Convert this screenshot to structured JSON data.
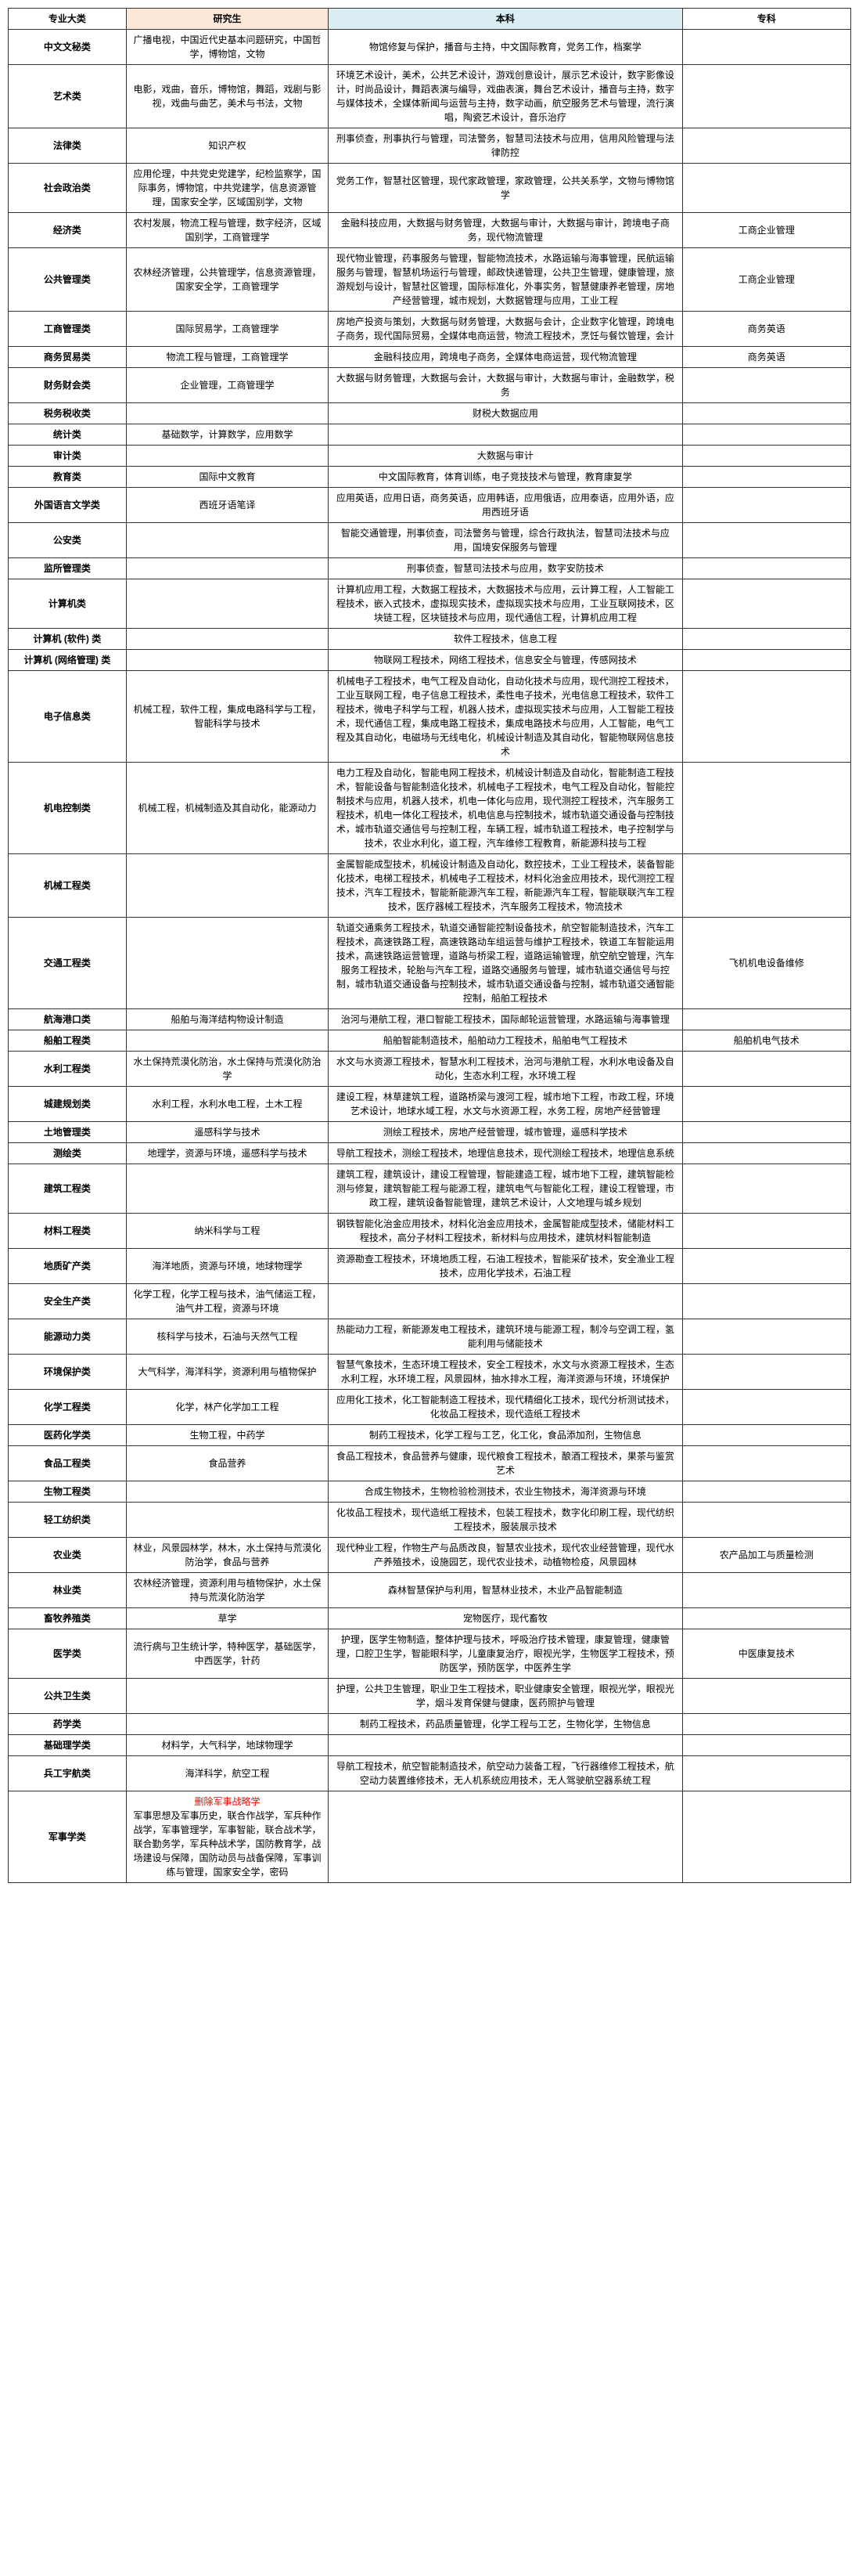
{
  "headers": {
    "category": "专业大类",
    "graduate": "研究生",
    "bachelor": "本科",
    "associate": "专科"
  },
  "header_bg": {
    "graduate": "#fde9d9",
    "bachelor": "#daeef3"
  },
  "rows": [
    {
      "cat": "中文文秘类",
      "grad": "广播电视，中国近代史基本问题研究，中国哲学，博物馆，文物",
      "bach": "物馆修复与保护，播音与主持，中文国际教育，党务工作，档案学",
      "assoc": ""
    },
    {
      "cat": "艺术类",
      "grad": "电影，戏曲，音乐，博物馆，舞蹈，戏剧与影视，戏曲与曲艺，美术与书法，文物",
      "bach": "环境艺术设计，美术，公共艺术设计，游戏创意设计，展示艺术设计，数字影像设计，时尚品设计，舞蹈表演与编导，戏曲表演，舞台艺术设计，播音与主持，数字与媒体技术，全媒体新闻与运营与主持，数字动画，航空服务艺术与管理，流行演唱，陶瓷艺术设计，音乐治疗",
      "assoc": ""
    },
    {
      "cat": "法律类",
      "grad": "知识产权",
      "bach": "刑事侦查，刑事执行与管理，司法警务，智慧司法技术与应用，信用风险管理与法律防控",
      "assoc": ""
    },
    {
      "cat": "社会政治类",
      "grad": "应用伦理，中共党史党建学，纪检监察学，国际事务，博物馆，中共党建学，信息资源管理，国家安全学，区域国别学，文物",
      "bach": "党务工作，智慧社区管理，现代家政管理，家政管理，公共关系学，文物与博物馆学",
      "assoc": ""
    },
    {
      "cat": "经济类",
      "grad": "农村发展，物流工程与管理，数字经济，区域国别学，工商管理学",
      "bach": "金融科技应用，大数据与财务管理，大数据与审计，大数据与审计，跨境电子商务，现代物流管理",
      "assoc": "工商企业管理"
    },
    {
      "cat": "公共管理类",
      "grad": "农林经济管理，公共管理学，信息资源管理，国家安全学，工商管理学",
      "bach": "现代物业管理，药事服务与管理，智能物流技术，水路运输与海事管理，民航运输服务与管理，智慧机场运行与管理，邮政快递管理，公共卫生管理，健康管理，旅游规划与设计，智慧社区管理，国际标准化，外事实务，智慧健康养老管理，房地产经营管理，城市规划，大数据管理与应用，工业工程",
      "assoc": "工商企业管理"
    },
    {
      "cat": "工商管理类",
      "grad": "国际贸易学，工商管理学",
      "bach": "房地产投资与策划，大数据与财务管理，大数据与会计，企业数字化管理，跨境电子商务，现代国际贸易，全媒体电商运营，物流工程技术，烹饪与餐饮管理，会计",
      "assoc": "商务英语"
    },
    {
      "cat": "商务贸易类",
      "grad": "物流工程与管理，工商管理学",
      "bach": "金融科技应用，跨境电子商务，全媒体电商运营，现代物流管理",
      "assoc": "商务英语"
    },
    {
      "cat": "财务财会类",
      "grad": "企业管理，工商管理学",
      "bach": "大数据与财务管理，大数据与会计，大数据与审计，大数据与审计，金融数学，税务",
      "assoc": ""
    },
    {
      "cat": "税务税收类",
      "grad": "",
      "bach": "财税大数据应用",
      "assoc": ""
    },
    {
      "cat": "统计类",
      "grad": "基础数学，计算数学，应用数学",
      "bach": "",
      "assoc": ""
    },
    {
      "cat": "审计类",
      "grad": "",
      "bach": "大数据与审计",
      "assoc": ""
    },
    {
      "cat": "教育类",
      "grad": "国际中文教育",
      "bach": "中文国际教育，体育训练，电子竞技技术与管理，教育康复学",
      "assoc": ""
    },
    {
      "cat": "外国语言文学类",
      "grad": "西班牙语笔译",
      "bach": "应用英语，应用日语，商务英语，应用韩语，应用俄语，应用泰语，应用外语，应用西班牙语",
      "assoc": ""
    },
    {
      "cat": "公安类",
      "grad": "",
      "bach": "智能交通管理，刑事侦查，司法警务与管理，综合行政执法，智慧司法技术与应用，国境安保服务与管理",
      "assoc": ""
    },
    {
      "cat": "监所管理类",
      "grad": "",
      "bach": "刑事侦查，智慧司法技术与应用，数字安防技术",
      "assoc": ""
    },
    {
      "cat": "计算机类",
      "grad": "",
      "bach": "计算机应用工程，大数据工程技术，大数据技术与应用，云计算工程，人工智能工程技术，嵌入式技术，虚拟现实技术，虚拟现实技术与应用，工业互联网技术，区块链工程，区块链技术与应用，现代通信工程，计算机应用工程",
      "assoc": ""
    },
    {
      "cat": "计算机 (软件) 类",
      "grad": "",
      "bach": "软件工程技术，信息工程",
      "assoc": ""
    },
    {
      "cat": "计算机 (网络管理) 类",
      "grad": "",
      "bach": "物联网工程技术，网络工程技术，信息安全与管理，传感网技术",
      "assoc": ""
    },
    {
      "cat": "电子信息类",
      "grad": "机械工程，软件工程，集成电路科学与工程，智能科学与技术",
      "bach": "机械电子工程技术，电气工程及自动化，自动化技术与应用，现代测控工程技术，工业互联网工程，电子信息工程技术，柔性电子技术，光电信息工程技术，软件工程技术，微电子科学与工程，机器人技术，虚拟现实技术与应用，人工智能工程技术，现代通信工程，集成电路工程技术，集成电路技术与应用，人工智能，电气工程及其自动化，电磁场与无线电化，机械设计制造及其自动化，智能物联网信息技术",
      "assoc": ""
    },
    {
      "cat": "机电控制类",
      "grad": "机械工程，机械制造及其自动化，能源动力",
      "bach": "电力工程及自动化，智能电网工程技术，机械设计制造及自动化，智能制造工程技术，智能设备与智能制造化技术，机械电子工程技术，电气工程及自动化，智能控制技术与应用，机器人技术，机电一体化与应用，现代测控工程技术，汽车服务工程技术，机电一体化工程技术，机电信息与控制技术，城市轨道交通设备与控制技术，城市轨道交通信号与控制工程，车辆工程，城市轨道工程技术，电子控制学与技术，农业水利化，道工程，汽车维修工程教育，新能源科技与工程",
      "assoc": ""
    },
    {
      "cat": "机械工程类",
      "grad": "",
      "bach": "金属智能成型技术，机械设计制造及自动化，数控技术，工业工程技术，装备智能化技术，电梯工程技术，机械电子工程技术，材料化治金应用技术，现代测控工程技术，汽车工程技术，智能新能源汽车工程，新能源汽车工程，智能联联汽车工程技术，医疗器械工程技术，汽车服务工程技术，物流技术",
      "assoc": ""
    },
    {
      "cat": "交通工程类",
      "grad": "",
      "bach": "轨道交通乘务工程技术，轨道交通智能控制设备技术，航空智能制造技术，汽车工程技术，高速铁路工程，高速铁路动车组运营与维护工程技术，铁道工车智能运用技术，高速铁路运营管理，道路与桥梁工程，道路运输管理，航空航空管理，汽车服务工程技术，轮胎与汽车工程，道路交通服务与管理，城市轨道交通信号与控制，城市轨道交通设备与控制技术，城市轨道交通设备与控制，城市轨道交通智能控制，船舶工程技术",
      "assoc": "飞机机电设备维修"
    },
    {
      "cat": "航海港口类",
      "grad": "船舶与海洋结构物设计制造",
      "bach": "治河与港航工程，港口智能工程技术，国际邮轮运营管理，水路运输与海事管理",
      "assoc": ""
    },
    {
      "cat": "船舶工程类",
      "grad": "",
      "bach": "船舶智能制造技术，船舶动力工程技术，船舶电气工程技术",
      "assoc": "船舶机电气技术"
    },
    {
      "cat": "水利工程类",
      "grad": "水土保持荒漠化防治，水土保持与荒漠化防治学",
      "bach": "水文与水资源工程技术，智慧水利工程技术，治河与港航工程，水利水电设备及自动化，生态水利工程，水环境工程",
      "assoc": ""
    },
    {
      "cat": "城建规划类",
      "grad": "水利工程，水利水电工程，土木工程",
      "bach": "建设工程，林草建筑工程，道路桥梁与渡河工程，城市地下工程，市政工程，环境艺术设计，地球水域工程，水文与水资源工程，水务工程，房地产经营管理",
      "assoc": ""
    },
    {
      "cat": "土地管理类",
      "grad": "遥感科学与技术",
      "bach": "测绘工程技术，房地产经营管理，城市管理，遥感科学技术",
      "assoc": ""
    },
    {
      "cat": "测绘类",
      "grad": "地理学，资源与环境，遥感科学与技术",
      "bach": "导航工程技术，测绘工程技术，地理信息技术，现代测绘工程技术，地理信息系统",
      "assoc": ""
    },
    {
      "cat": "建筑工程类",
      "grad": "",
      "bach": "建筑工程，建筑设计，建设工程管理，智能建造工程，城市地下工程，建筑智能检测与修复，建筑智能工程与能源工程，建筑电气与智能化工程，建设工程管理，市政工程，建筑设备智能管理，建筑艺术设计，人文地理与城乡规划",
      "assoc": ""
    },
    {
      "cat": "材料工程类",
      "grad": "纳米科学与工程",
      "bach": "钢铁智能化治金应用技术，材料化治金应用技术，金属智能成型技术，储能材料工程技术，高分子材料工程技术，新材料与应用技术，建筑材料智能制造",
      "assoc": ""
    },
    {
      "cat": "地质矿产类",
      "grad": "海洋地质，资源与环境，地球物理学",
      "bach": "资源勘查工程技术，环境地质工程，石油工程技术，智能采矿技术，安全渔业工程技术，应用化学技术，石油工程",
      "assoc": ""
    },
    {
      "cat": "安全生产类",
      "grad": "化学工程，化学工程与技术，油气储运工程，油气井工程，资源与环境",
      "bach": "",
      "assoc": ""
    },
    {
      "cat": "能源动力类",
      "grad": "核科学与技术，石油与天然气工程",
      "bach": "热能动力工程，新能源发电工程技术，建筑环境与能源工程，制冷与空调工程，氢能利用与储能技术",
      "assoc": ""
    },
    {
      "cat": "环境保护类",
      "grad": "大气科学，海洋科学，资源利用与植物保护",
      "bach": "智慧气象技术，生态环境工程技术，安全工程技术，水文与水资源工程技术，生态水利工程，水环境工程，风景园林，抽水排水工程，海洋资源与环境，环境保护",
      "assoc": ""
    },
    {
      "cat": "化学工程类",
      "grad": "化学，林产化学加工工程",
      "bach": "应用化工技术，化工智能制造工程技术，现代精细化工技术，现代分析测试技术，化妆品工程技术，现代造纸工程技术",
      "assoc": ""
    },
    {
      "cat": "医药化学类",
      "grad": "生物工程，中药学",
      "bach": "制药工程技术，化学工程与工艺，化工化，食品添加剂，生物信息",
      "assoc": ""
    },
    {
      "cat": "食品工程类",
      "grad": "食品营养",
      "bach": "食品工程技术，食品营养与健康，现代粮食工程技术，酿酒工程技术，果茶与鉴赏艺术",
      "assoc": ""
    },
    {
      "cat": "生物工程类",
      "grad": "",
      "bach": "合成生物技术，生物检验检测技术，农业生物技术，海洋资源与环境",
      "assoc": ""
    },
    {
      "cat": "轻工纺织类",
      "grad": "",
      "bach": "化妆品工程技术，现代造纸工程技术，包装工程技术，数字化印刷工程，现代纺织工程技术，服装展示技术",
      "assoc": ""
    },
    {
      "cat": "农业类",
      "grad": "林业，风景园林学，林木，水土保持与荒漠化防治学，食品与营养",
      "bach": "现代种业工程，作物生产与品质改良，智慧农业技术，现代农业经营管理，现代水产养殖技术，设施园艺，现代农业技术，动植物检疫，风景园林",
      "assoc": "农产品加工与质量检测"
    },
    {
      "cat": "林业类",
      "grad": "农林经济管理，资源利用与植物保护，水土保持与荒漠化防治学",
      "bach": "森林智慧保护与利用，智慧林业技术，木业产品智能制造",
      "assoc": ""
    },
    {
      "cat": "畜牧养殖类",
      "grad": "草学",
      "bach": "宠物医疗，现代畜牧",
      "assoc": ""
    },
    {
      "cat": "医学类",
      "grad": "流行病与卫生统计学，特种医学，基础医学，中西医学，针药",
      "bach": "护理，医学生物制造，整体护理与技术，呼吸治疗技术管理，康复管理，健康管理，口腔卫生学，智能眼科学，儿童康复治疗，眼视光学，生物医学工程技术，预防医学，预防医学，中医养生学",
      "assoc": "中医康复技术"
    },
    {
      "cat": "公共卫生类",
      "grad": "",
      "bach": "护理，公共卫生管理，职业卫生工程技术，职业健康安全管理，眼视光学，眼视光学，烟斗发育保健与健康，医药照护与管理",
      "assoc": ""
    },
    {
      "cat": "药学类",
      "grad": "",
      "bach": "制药工程技术，药品质量管理，化学工程与工艺，生物化学，生物信息",
      "assoc": ""
    },
    {
      "cat": "基础理学类",
      "grad": "材料学，大气科学，地球物理学",
      "bach": "",
      "assoc": ""
    },
    {
      "cat": "兵工宇航类",
      "grad": "海洋科学，航空工程",
      "bach": "导航工程技术，航空智能制造技术，航空动力装备工程，飞行器维修工程技术，航空动力装置维修技术，无人机系统应用技术，无人驾驶航空器系统工程",
      "assoc": ""
    },
    {
      "cat": "军事学类",
      "grad": "<span class=\"red-text\">删除军事战略学</span><br>军事思想及军事历史，联合作战学，军兵种作战学，军事管理学，军事智能，联合战术学，联合勤务学，军兵种战术学，国防教育学，战场建设与保障，国防动员与战备保障，军事训练与管理，国家安全学，密码",
      "bach": "",
      "assoc": ""
    }
  ]
}
